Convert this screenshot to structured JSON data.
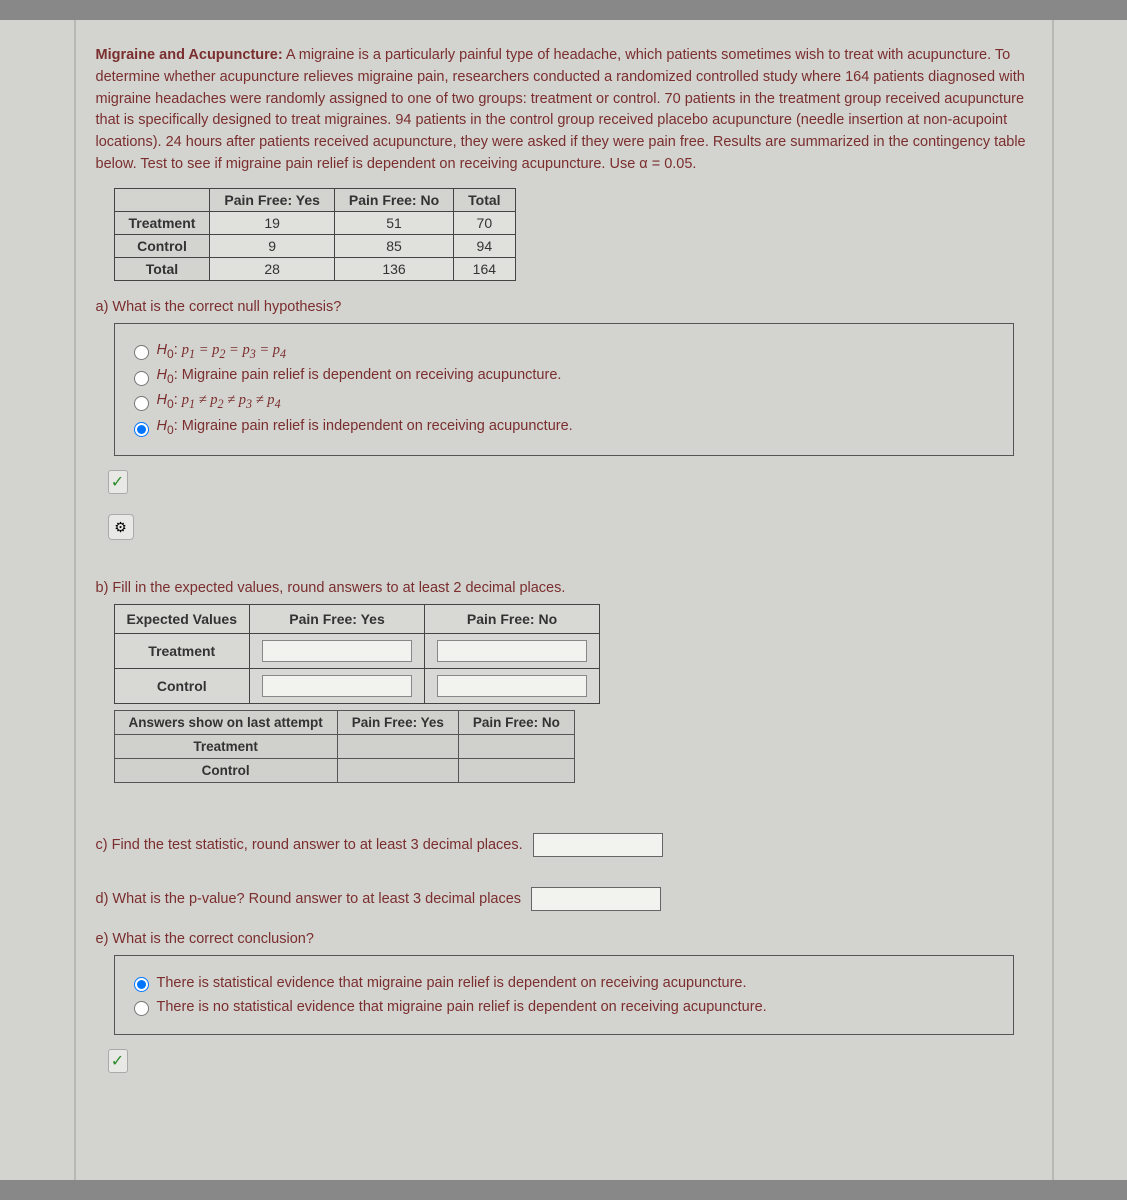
{
  "intro": {
    "title": "Migraine and Acupuncture:",
    "body": " A migraine is a particularly painful type of headache, which patients sometimes wish to treat with acupuncture. To determine whether acupuncture relieves migraine pain, researchers conducted a randomized controlled study where 164 patients diagnosed with migraine headaches were randomly assigned to one of two groups: treatment or control. 70 patients in the treatment group received acupuncture that is specifically designed to treat migraines. 94 patients in the control group received placebo acupuncture (needle insertion at non-acupoint locations). 24 hours after patients received acupuncture, they were asked if they were pain free. Results are summarized in the contingency table below. Test to see if migraine pain relief is dependent on receiving acupuncture. Use α = 0.05."
  },
  "contingency": {
    "columns": [
      "",
      "Pain Free: Yes",
      "Pain Free: No",
      "Total"
    ],
    "rows": [
      [
        "Treatment",
        "19",
        "51",
        "70"
      ],
      [
        "Control",
        "9",
        "85",
        "94"
      ],
      [
        "Total",
        "28",
        "136",
        "164"
      ]
    ],
    "colors": {
      "border": "#444444",
      "header_bg": "#d3d3cf",
      "cell_bg": "#e0e0dc"
    }
  },
  "part_a": {
    "prompt": "a) What is the correct null hypothesis?",
    "options": [
      {
        "label_html": "<span class='h0'>H</span><sub>0</sub>: <span class='math'>p<sub>1</sub> = p<sub>2</sub> = p<sub>3</sub> = p<sub>4</sub></span>",
        "checked": false
      },
      {
        "label_html": "<span class='h0'>H</span><sub>0</sub>: Migraine pain relief is dependent on receiving acupuncture.",
        "checked": false
      },
      {
        "label_html": "<span class='h0'>H</span><sub>0</sub>: <span class='math'>p<sub>1</sub> ≠ p<sub>2</sub> ≠ p<sub>3</sub> ≠ p<sub>4</sub></span>",
        "checked": false
      },
      {
        "label_html": "<span class='h0'>H</span><sub>0</sub>: Migraine pain relief is independent on receiving acupuncture.",
        "checked": true
      }
    ]
  },
  "part_b": {
    "prompt": "b) Fill in the expected values, round answers to at least 2 decimal places.",
    "expected_table": {
      "columns": [
        "Expected Values",
        "Pain Free: Yes",
        "Pain Free: No"
      ],
      "row_labels": [
        "Treatment",
        "Control"
      ]
    },
    "answers_table": {
      "columns": [
        "Answers show on last attempt",
        "Pain Free: Yes",
        "Pain Free: No"
      ],
      "row_labels": [
        "Treatment",
        "Control"
      ]
    }
  },
  "part_c": {
    "prompt": "c) Find the test statistic, round answer to at least 3 decimal places."
  },
  "part_d": {
    "prompt": "d) What is the p-value? Round answer to at least 3 decimal places"
  },
  "part_e": {
    "prompt": "e) What is the correct conclusion?",
    "options": [
      {
        "label": "There is statistical evidence that migraine pain relief is dependent on receiving acupuncture.",
        "checked": true
      },
      {
        "label": "There is no statistical evidence that migraine pain relief is dependent on receiving acupuncture.",
        "checked": false
      }
    ]
  },
  "colors": {
    "text_red": "#7a2e2e",
    "page_bg": "#d3d3cf",
    "check_green": "#2a8a2a"
  }
}
